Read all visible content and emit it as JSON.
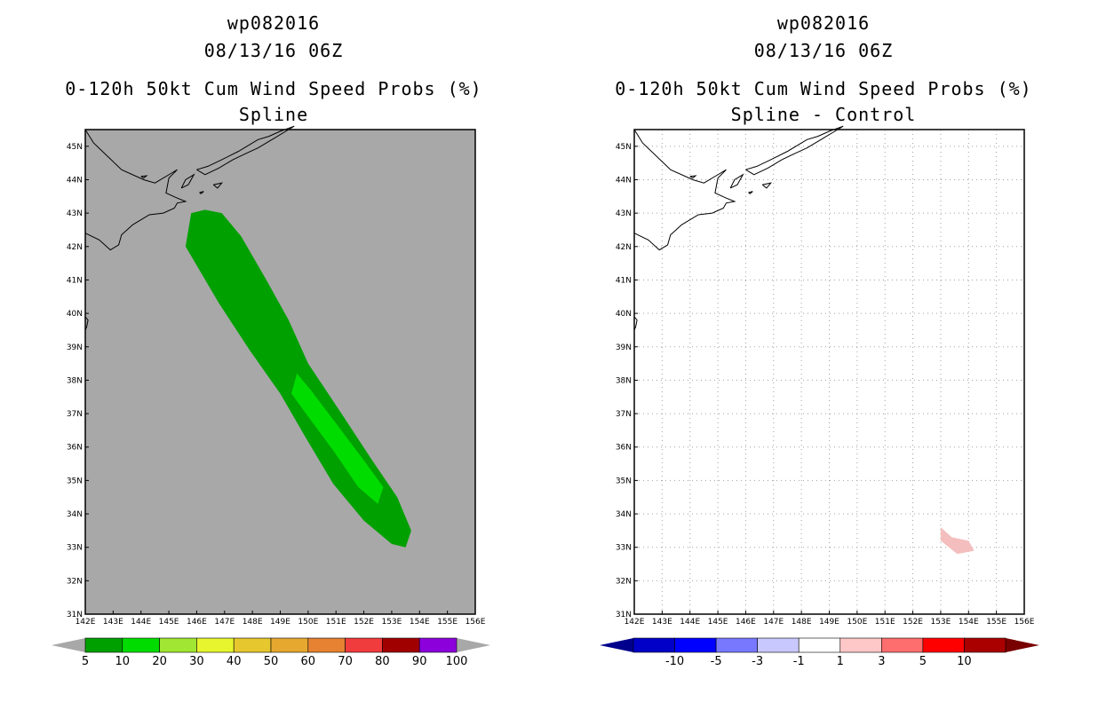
{
  "panels": [
    {
      "storm_id": "wp082016",
      "datetime": "08/13/16 06Z",
      "product": "0-120h 50kt Cum Wind Speed Probs (%)",
      "subtitle": "Spline",
      "colors": {
        "background": "#a8a8a8",
        "coast": "#000000"
      }
    },
    {
      "storm_id": "wp082016",
      "datetime": "08/13/16 06Z",
      "product": "0-120h 50kt Cum Wind Speed Probs (%)",
      "subtitle": "Spline - Control",
      "colors": {
        "background": "#ffffff",
        "coast": "#000000",
        "grid": "#a0a0a0"
      }
    }
  ],
  "chart_data": [
    {
      "type": "heatmap",
      "title": "0-120h 50kt Cum Wind Speed Probs (%)",
      "subtitle": "Spline",
      "xlim": [
        142,
        156
      ],
      "ylim": [
        31,
        45.5
      ],
      "x_ticks": [
        "142E",
        "143E",
        "144E",
        "145E",
        "146E",
        "147E",
        "148E",
        "149E",
        "150E",
        "151E",
        "152E",
        "153E",
        "154E",
        "155E",
        "156E"
      ],
      "y_ticks": [
        "31N",
        "32N",
        "33N",
        "34N",
        "35N",
        "36N",
        "37N",
        "38N",
        "39N",
        "40N",
        "41N",
        "42N",
        "43N",
        "44N",
        "45N"
      ],
      "grid": false,
      "regions": [
        {
          "label": "5-10",
          "color": "#00a000",
          "lonlat": [
            [
              145.6,
              42.0
            ],
            [
              145.8,
              43.0
            ],
            [
              146.3,
              43.1
            ],
            [
              146.9,
              43.0
            ],
            [
              147.6,
              42.3
            ],
            [
              148.5,
              41.0
            ],
            [
              149.3,
              39.8
            ],
            [
              150.0,
              38.5
            ],
            [
              151.2,
              37.0
            ],
            [
              152.3,
              35.6
            ],
            [
              153.2,
              34.5
            ],
            [
              153.7,
              33.5
            ],
            [
              153.5,
              33.0
            ],
            [
              153.0,
              33.1
            ],
            [
              152.0,
              33.8
            ],
            [
              150.9,
              34.9
            ],
            [
              149.9,
              36.3
            ],
            [
              149.0,
              37.6
            ],
            [
              147.9,
              38.9
            ],
            [
              146.8,
              40.3
            ]
          ]
        },
        {
          "label": "10-20",
          "color": "#00dc00",
          "lonlat": [
            [
              149.6,
              38.2
            ],
            [
              150.1,
              37.7
            ],
            [
              151.1,
              36.6
            ],
            [
              152.0,
              35.6
            ],
            [
              152.7,
              34.8
            ],
            [
              152.5,
              34.3
            ],
            [
              151.8,
              34.8
            ],
            [
              150.9,
              35.9
            ],
            [
              150.1,
              36.8
            ],
            [
              149.4,
              37.6
            ]
          ]
        }
      ],
      "colorbar": {
        "labels": [
          "5",
          "10",
          "20",
          "30",
          "40",
          "50",
          "60",
          "70",
          "80",
          "90",
          "100"
        ],
        "colors": [
          "#00a000",
          "#00dc00",
          "#a0e632",
          "#e6f52e",
          "#e6c82e",
          "#e6a82e",
          "#e68232",
          "#f03c3c",
          "#a00000",
          "#8c00dc"
        ],
        "end_colors": [
          "#a8a8a8",
          "#a8a8a8"
        ]
      }
    },
    {
      "type": "heatmap",
      "title": "0-120h 50kt Cum Wind Speed Probs (%)",
      "subtitle": "Spline - Control",
      "xlim": [
        142,
        156
      ],
      "ylim": [
        31,
        45.5
      ],
      "x_ticks": [
        "142E",
        "143E",
        "144E",
        "145E",
        "146E",
        "147E",
        "148E",
        "149E",
        "150E",
        "151E",
        "152E",
        "153E",
        "154E",
        "155E",
        "156E"
      ],
      "y_ticks": [
        "31N",
        "32N",
        "33N",
        "34N",
        "35N",
        "36N",
        "37N",
        "38N",
        "39N",
        "40N",
        "41N",
        "42N",
        "43N",
        "44N",
        "45N"
      ],
      "grid": true,
      "regions": [
        {
          "label": "1-3",
          "color": "#f5bebe",
          "lonlat": [
            [
              153.0,
              33.6
            ],
            [
              153.4,
              33.3
            ],
            [
              154.0,
              33.2
            ],
            [
              154.2,
              32.9
            ],
            [
              153.6,
              32.8
            ],
            [
              153.0,
              33.2
            ]
          ]
        }
      ],
      "colorbar": {
        "labels": [
          "-10",
          "-5",
          "-3",
          "-1",
          "1",
          "3",
          "5",
          "10"
        ],
        "colors": [
          "#0000c8",
          "#0000ff",
          "#7878ff",
          "#c8c8ff",
          "#ffffff",
          "#ffc8c8",
          "#ff6e6e",
          "#ff0000",
          "#aa0000"
        ],
        "end_colors": [
          "#00008c",
          "#780000"
        ]
      }
    }
  ]
}
